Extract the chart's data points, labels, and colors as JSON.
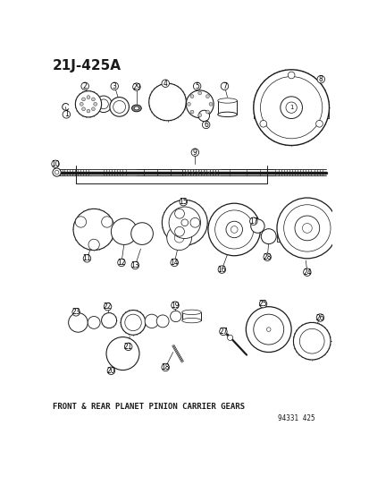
{
  "title": "21J-425A",
  "caption": "FRONT & REAR PLANET PINION CARRIER GEARS",
  "part_number": "94331 425",
  "bg_color": "#ffffff",
  "line_color": "#1a1a1a",
  "title_fontsize": 11,
  "caption_fontsize": 6.5,
  "part_num_fontsize": 5.5,
  "label_fontsize": 5.5,
  "fig_width": 4.14,
  "fig_height": 5.33,
  "dpi": 100
}
